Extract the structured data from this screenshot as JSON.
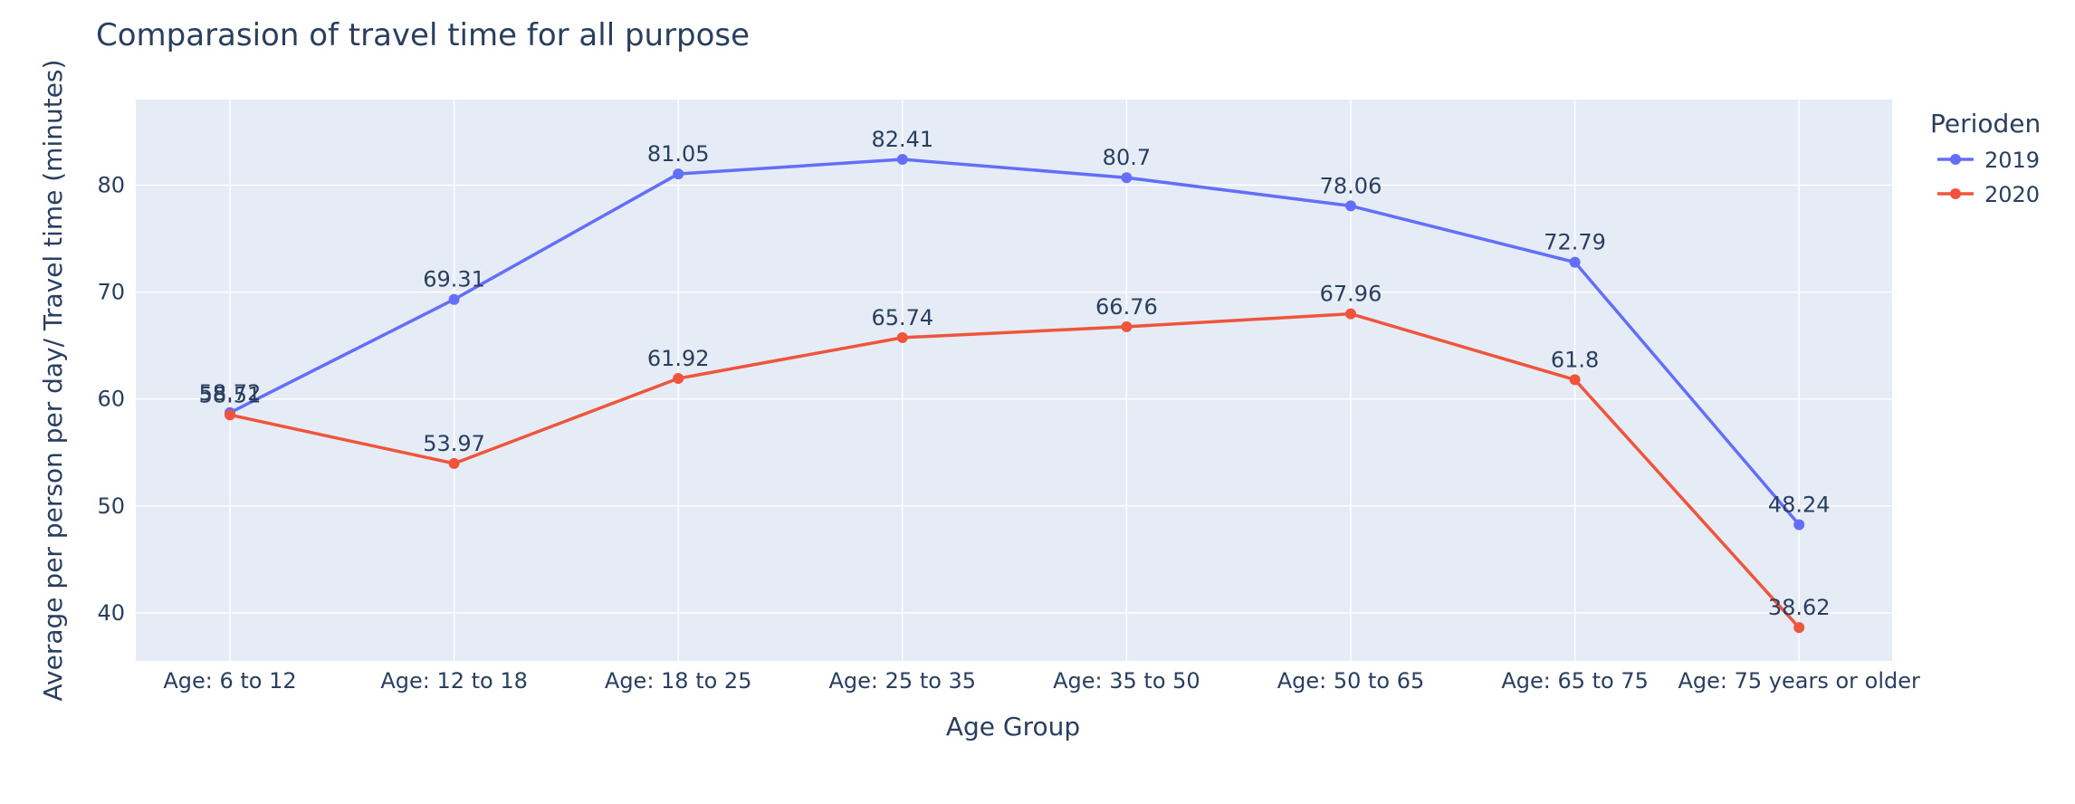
{
  "chart_data": {
    "type": "line",
    "title": "Comparasion of travel time for all purpose",
    "xlabel": "Age Group",
    "ylabel": "Average per person per day/ Travel time (minutes)",
    "categories": [
      "Age: 6 to 12",
      "Age: 12 to 18",
      "Age: 18 to 25",
      "Age: 25 to 35",
      "Age: 35 to 50",
      "Age: 50 to 65",
      "Age: 65 to 75",
      "Age: 75 years or older"
    ],
    "ylim": [
      35.5,
      88
    ],
    "yticks": [
      40,
      50,
      60,
      70,
      80
    ],
    "grid": true,
    "legend_title": "Perioden",
    "legend_position": "top-right",
    "series": [
      {
        "name": "2019",
        "color": "#636efa",
        "values": [
          58.72,
          69.31,
          81.05,
          82.41,
          80.7,
          78.06,
          72.79,
          48.24
        ]
      },
      {
        "name": "2020",
        "color": "#ef553b",
        "values": [
          58.51,
          53.97,
          61.92,
          65.74,
          66.76,
          67.96,
          61.8,
          38.62
        ]
      }
    ]
  },
  "colors": {
    "plot_bg": "#e5ecf6",
    "grid": "#ffffff",
    "text": "#2a3f5f"
  }
}
